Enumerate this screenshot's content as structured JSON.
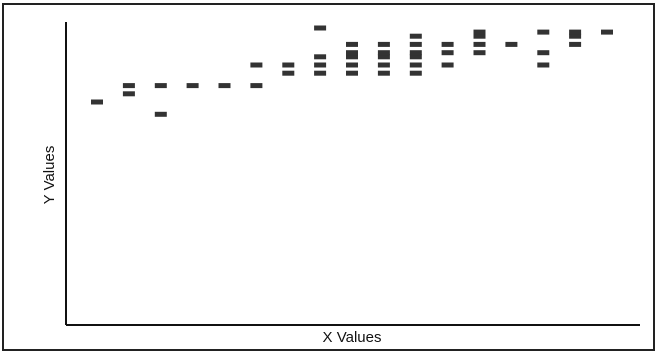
{
  "chart_data": {
    "type": "scatter",
    "title": "",
    "xlabel": "X Values",
    "ylabel": "Y Values",
    "xlim": [
      0,
      18
    ],
    "ylim": [
      0,
      100
    ],
    "grid": false,
    "legend": "none",
    "marker": "dash",
    "color": "#333333",
    "points": [
      {
        "x": 1,
        "y": 82
      },
      {
        "x": 2,
        "y": 84
      },
      {
        "x": 2,
        "y": 86
      },
      {
        "x": 3,
        "y": 79
      },
      {
        "x": 3,
        "y": 86
      },
      {
        "x": 4,
        "y": 86
      },
      {
        "x": 5,
        "y": 86
      },
      {
        "x": 6,
        "y": 86
      },
      {
        "x": 6,
        "y": 91
      },
      {
        "x": 7,
        "y": 89
      },
      {
        "x": 7,
        "y": 91
      },
      {
        "x": 8,
        "y": 89
      },
      {
        "x": 8,
        "y": 91
      },
      {
        "x": 8,
        "y": 93
      },
      {
        "x": 8,
        "y": 100
      },
      {
        "x": 9,
        "y": 89
      },
      {
        "x": 9,
        "y": 91
      },
      {
        "x": 9,
        "y": 93
      },
      {
        "x": 9,
        "y": 94
      },
      {
        "x": 9,
        "y": 96
      },
      {
        "x": 10,
        "y": 89
      },
      {
        "x": 10,
        "y": 91
      },
      {
        "x": 10,
        "y": 93
      },
      {
        "x": 10,
        "y": 94
      },
      {
        "x": 10,
        "y": 96
      },
      {
        "x": 11,
        "y": 89
      },
      {
        "x": 11,
        "y": 91
      },
      {
        "x": 11,
        "y": 93
      },
      {
        "x": 11,
        "y": 94
      },
      {
        "x": 11,
        "y": 96
      },
      {
        "x": 11,
        "y": 98
      },
      {
        "x": 12,
        "y": 91
      },
      {
        "x": 12,
        "y": 94
      },
      {
        "x": 12,
        "y": 96
      },
      {
        "x": 13,
        "y": 94
      },
      {
        "x": 13,
        "y": 96
      },
      {
        "x": 13,
        "y": 98
      },
      {
        "x": 13,
        "y": 99
      },
      {
        "x": 14,
        "y": 96
      },
      {
        "x": 15,
        "y": 91
      },
      {
        "x": 15,
        "y": 94
      },
      {
        "x": 15,
        "y": 99
      },
      {
        "x": 16,
        "y": 96
      },
      {
        "x": 16,
        "y": 98
      },
      {
        "x": 16,
        "y": 99
      },
      {
        "x": 17,
        "y": 99
      }
    ]
  }
}
